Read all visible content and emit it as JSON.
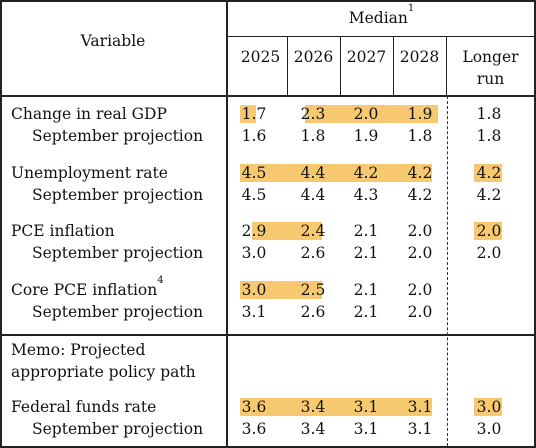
{
  "header": {
    "variable": "Variable",
    "median": "Median",
    "median_note": "1",
    "years": [
      "2025",
      "2026",
      "2027",
      "2028"
    ],
    "longer_run_line1": "Longer",
    "longer_run_line2": "run"
  },
  "rows": [
    {
      "label": "Change in real GDP",
      "note": "",
      "values": [
        "1.7",
        "2.3",
        "2.0",
        "1.9"
      ],
      "longer": "1.8"
    },
    {
      "label": "September projection",
      "note": "",
      "values": [
        "1.6",
        "1.8",
        "1.9",
        "1.8"
      ],
      "longer": "1.8"
    },
    {
      "label": "Unemployment rate",
      "note": "",
      "values": [
        "4.5",
        "4.4",
        "4.2",
        "4.2"
      ],
      "longer": "4.2"
    },
    {
      "label": "September projection",
      "note": "",
      "values": [
        "4.5",
        "4.4",
        "4.3",
        "4.2"
      ],
      "longer": "4.2"
    },
    {
      "label": "PCE inflation",
      "note": "",
      "values": [
        "2.9",
        "2.4",
        "2.1",
        "2.0"
      ],
      "longer": "2.0"
    },
    {
      "label": "September projection",
      "note": "",
      "values": [
        "3.0",
        "2.6",
        "2.1",
        "2.0"
      ],
      "longer": "2.0"
    },
    {
      "label": "Core PCE inflation",
      "note": "4",
      "values": [
        "3.0",
        "2.5",
        "2.1",
        "2.0"
      ],
      "longer": ""
    },
    {
      "label": "September projection",
      "note": "",
      "values": [
        "3.1",
        "2.6",
        "2.1",
        "2.0"
      ],
      "longer": ""
    }
  ],
  "memo": {
    "line1": "Memo: Projected",
    "line2": "appropriate policy path"
  },
  "memo_rows": [
    {
      "label": "Federal funds rate",
      "values": [
        "3.6",
        "3.4",
        "3.1",
        "3.1"
      ],
      "longer": "3.0"
    },
    {
      "label": "September projection",
      "values": [
        "3.6",
        "3.4",
        "3.1",
        "3.1"
      ],
      "longer": "3.0"
    }
  ],
  "highlight_color": "#f6c970"
}
